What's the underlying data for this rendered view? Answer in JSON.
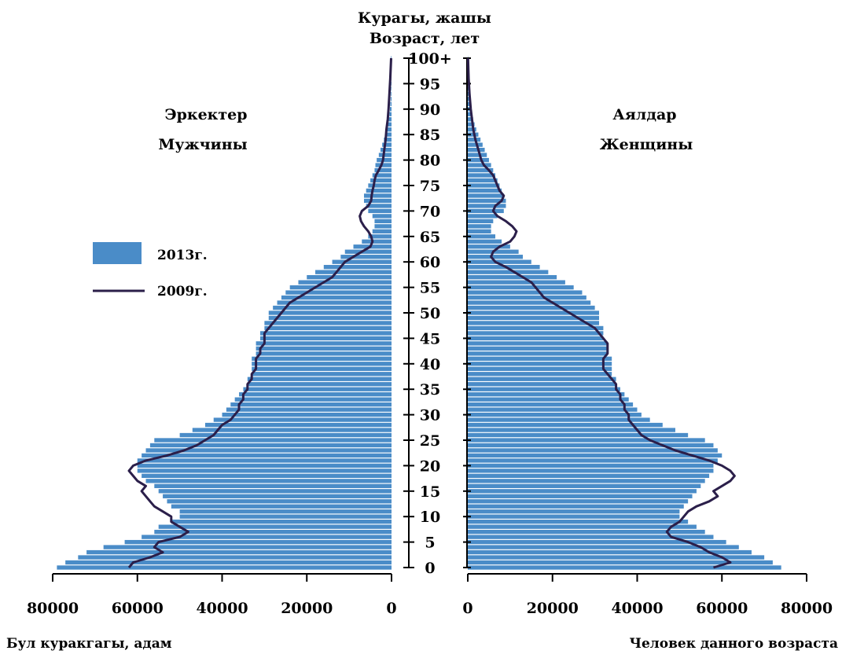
{
  "chart_data": {
    "type": "bar",
    "subtype": "population-pyramid",
    "title_kg": "Курагы, жашы",
    "title_ru": "Возраст, лет",
    "male_label_kg": "Эркектер",
    "male_label_ru": "Мужчины",
    "female_label_kg": "Аялдар",
    "female_label_ru": "Женщины",
    "xlabel_left": "Бул куракгагы, адам",
    "xlabel_right": "Человек данного возраста",
    "legend": [
      {
        "name": "2013г.",
        "kind": "bar",
        "color": "#4a8cc8"
      },
      {
        "name": "2009г.",
        "kind": "line",
        "color": "#2b1f4a"
      }
    ],
    "age_ticks": [
      "0",
      "5",
      "10",
      "15",
      "20",
      "25",
      "30",
      "35",
      "40",
      "45",
      "50",
      "55",
      "60",
      "65",
      "70",
      "75",
      "80",
      "85",
      "90",
      "95",
      "100+"
    ],
    "left_ticks": [
      "80000",
      "60000",
      "40000",
      "20000",
      "0"
    ],
    "right_ticks": [
      "0",
      "20000",
      "40000",
      "60000",
      "80000"
    ],
    "xlim": [
      0,
      80000
    ],
    "series": [
      {
        "name": "2013г.",
        "kind": "bar",
        "male": [
          79000,
          77000,
          74000,
          72000,
          68000,
          63000,
          59000,
          56000,
          55000,
          52000,
          50000,
          50000,
          52000,
          53000,
          54000,
          55000,
          56000,
          58000,
          59000,
          60000,
          60000,
          60000,
          59000,
          58000,
          57000,
          56000,
          50000,
          47000,
          44000,
          42000,
          40000,
          39000,
          38000,
          37000,
          36000,
          35000,
          34000,
          34000,
          33000,
          33000,
          33000,
          33000,
          32000,
          32000,
          32000,
          31000,
          31000,
          30000,
          30000,
          29000,
          29000,
          28000,
          27000,
          26000,
          25000,
          24000,
          22000,
          20000,
          18000,
          16000,
          14000,
          12000,
          11000,
          9000,
          7000,
          5500,
          4500,
          4000,
          4000,
          4500,
          5500,
          6000,
          6500,
          6500,
          6000,
          5500,
          5000,
          4500,
          4000,
          3800,
          3500,
          3000,
          2600,
          2200,
          1800,
          1400,
          1100,
          850,
          650,
          500,
          380,
          280,
          200,
          150,
          110,
          80,
          60,
          40,
          30,
          20,
          120
        ],
        "female": [
          74000,
          72000,
          70000,
          67000,
          64000,
          61000,
          58000,
          56000,
          54000,
          52000,
          50000,
          50000,
          51000,
          52000,
          53000,
          54000,
          55000,
          56000,
          57000,
          58000,
          58000,
          59000,
          60000,
          59000,
          58000,
          56000,
          52000,
          49000,
          46000,
          43000,
          41000,
          40000,
          39000,
          38000,
          37000,
          36000,
          35000,
          35000,
          34000,
          34000,
          34000,
          34000,
          33000,
          33000,
          33000,
          32000,
          32000,
          32000,
          31000,
          31000,
          31000,
          30000,
          29000,
          28000,
          27000,
          25000,
          23000,
          21000,
          19000,
          17000,
          15000,
          13000,
          12000,
          10000,
          8000,
          6500,
          5500,
          5500,
          6000,
          7000,
          8500,
          9000,
          9000,
          8500,
          8000,
          7500,
          7000,
          6500,
          6000,
          5500,
          5000,
          4500,
          4000,
          3500,
          3000,
          2500,
          2000,
          1600,
          1250,
          950,
          700,
          500,
          350,
          250,
          180,
          120,
          80,
          50,
          35,
          20,
          60
        ]
      },
      {
        "name": "2009г.",
        "kind": "line",
        "male": [
          [
            0,
            62000
          ],
          [
            1,
            61000
          ],
          [
            2,
            57000
          ],
          [
            3,
            54000
          ],
          [
            4,
            56000
          ],
          [
            5,
            55000
          ],
          [
            6,
            50000
          ],
          [
            7,
            48000
          ],
          [
            8,
            50000
          ],
          [
            9,
            52000
          ],
          [
            10,
            52000
          ],
          [
            11,
            54000
          ],
          [
            12,
            56000
          ],
          [
            13,
            57000
          ],
          [
            14,
            58000
          ],
          [
            15,
            59000
          ],
          [
            16,
            58000
          ],
          [
            17,
            60000
          ],
          [
            18,
            61000
          ],
          [
            19,
            62000
          ],
          [
            20,
            61000
          ],
          [
            21,
            58000
          ],
          [
            22,
            53000
          ],
          [
            23,
            49000
          ],
          [
            24,
            46000
          ],
          [
            25,
            44000
          ],
          [
            26,
            42000
          ],
          [
            27,
            41000
          ],
          [
            28,
            40000
          ],
          [
            29,
            38000
          ],
          [
            30,
            37000
          ],
          [
            31,
            36000
          ],
          [
            32,
            36000
          ],
          [
            33,
            35000
          ],
          [
            34,
            35000
          ],
          [
            35,
            34000
          ],
          [
            36,
            34000
          ],
          [
            37,
            33000
          ],
          [
            38,
            33000
          ],
          [
            39,
            32000
          ],
          [
            40,
            32000
          ],
          [
            41,
            32000
          ],
          [
            42,
            31000
          ],
          [
            43,
            31000
          ],
          [
            44,
            30000
          ],
          [
            45,
            30000
          ],
          [
            46,
            30000
          ],
          [
            47,
            29000
          ],
          [
            48,
            28000
          ],
          [
            49,
            27000
          ],
          [
            50,
            26000
          ],
          [
            51,
            25000
          ],
          [
            52,
            24000
          ],
          [
            53,
            22000
          ],
          [
            54,
            20000
          ],
          [
            55,
            18000
          ],
          [
            56,
            16000
          ],
          [
            57,
            14000
          ],
          [
            58,
            13000
          ],
          [
            59,
            12000
          ],
          [
            60,
            11000
          ],
          [
            61,
            9000
          ],
          [
            62,
            7000
          ],
          [
            63,
            5000
          ],
          [
            64,
            4500
          ],
          [
            65,
            4800
          ],
          [
            66,
            5500
          ],
          [
            67,
            6500
          ],
          [
            68,
            7200
          ],
          [
            69,
            7500
          ],
          [
            70,
            7000
          ],
          [
            71,
            5500
          ],
          [
            72,
            4800
          ],
          [
            73,
            4700
          ],
          [
            74,
            4500
          ],
          [
            75,
            4200
          ],
          [
            76,
            4000
          ],
          [
            77,
            3700
          ],
          [
            78,
            3000
          ],
          [
            79,
            2400
          ],
          [
            80,
            2000
          ],
          [
            82,
            1700
          ],
          [
            84,
            1400
          ],
          [
            86,
            1200
          ],
          [
            88,
            900
          ],
          [
            90,
            700
          ],
          [
            93,
            500
          ],
          [
            96,
            300
          ],
          [
            100,
            100
          ]
        ],
        "female": [
          [
            0,
            58000
          ],
          [
            1,
            62000
          ],
          [
            2,
            60000
          ],
          [
            3,
            57000
          ],
          [
            4,
            55000
          ],
          [
            5,
            52000
          ],
          [
            6,
            48000
          ],
          [
            7,
            47000
          ],
          [
            8,
            48000
          ],
          [
            9,
            50000
          ],
          [
            10,
            51000
          ],
          [
            11,
            52000
          ],
          [
            12,
            54000
          ],
          [
            13,
            57000
          ],
          [
            14,
            59000
          ],
          [
            15,
            58000
          ],
          [
            16,
            60000
          ],
          [
            17,
            62000
          ],
          [
            18,
            63000
          ],
          [
            19,
            62000
          ],
          [
            20,
            60000
          ],
          [
            21,
            57000
          ],
          [
            22,
            53000
          ],
          [
            23,
            49000
          ],
          [
            24,
            46000
          ],
          [
            25,
            43000
          ],
          [
            26,
            41000
          ],
          [
            27,
            40000
          ],
          [
            28,
            39000
          ],
          [
            29,
            38000
          ],
          [
            30,
            38000
          ],
          [
            31,
            37000
          ],
          [
            32,
            37000
          ],
          [
            33,
            36000
          ],
          [
            34,
            36000
          ],
          [
            35,
            35000
          ],
          [
            36,
            35000
          ],
          [
            37,
            34000
          ],
          [
            38,
            33000
          ],
          [
            39,
            32000
          ],
          [
            40,
            32000
          ],
          [
            41,
            32000
          ],
          [
            42,
            33000
          ],
          [
            43,
            33000
          ],
          [
            44,
            33000
          ],
          [
            45,
            32000
          ],
          [
            46,
            31000
          ],
          [
            47,
            30000
          ],
          [
            48,
            28000
          ],
          [
            49,
            26000
          ],
          [
            50,
            24000
          ],
          [
            51,
            22000
          ],
          [
            52,
            20000
          ],
          [
            53,
            18000
          ],
          [
            54,
            17000
          ],
          [
            55,
            16000
          ],
          [
            56,
            15000
          ],
          [
            57,
            13000
          ],
          [
            58,
            11000
          ],
          [
            59,
            9000
          ],
          [
            60,
            6500
          ],
          [
            61,
            5500
          ],
          [
            62,
            6000
          ],
          [
            63,
            7500
          ],
          [
            64,
            10000
          ],
          [
            65,
            11000
          ],
          [
            66,
            11500
          ],
          [
            67,
            10500
          ],
          [
            68,
            9000
          ],
          [
            69,
            7000
          ],
          [
            70,
            6000
          ],
          [
            71,
            6500
          ],
          [
            72,
            8000
          ],
          [
            73,
            8500
          ],
          [
            74,
            7500
          ],
          [
            75,
            7000
          ],
          [
            76,
            6500
          ],
          [
            77,
            6000
          ],
          [
            78,
            5000
          ],
          [
            79,
            3800
          ],
          [
            80,
            3200
          ],
          [
            82,
            2500
          ],
          [
            84,
            1800
          ],
          [
            86,
            1300
          ],
          [
            88,
            1000
          ],
          [
            90,
            700
          ],
          [
            93,
            400
          ],
          [
            96,
            200
          ],
          [
            100,
            50
          ]
        ]
      }
    ]
  }
}
